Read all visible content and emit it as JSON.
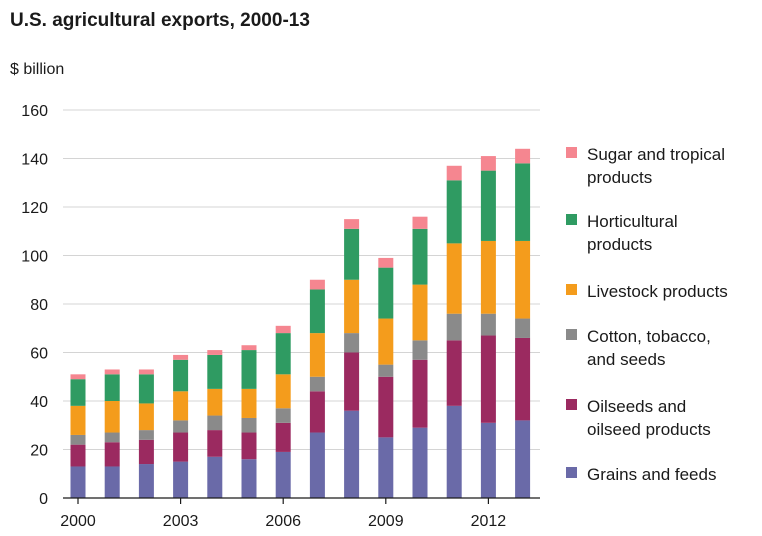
{
  "title": "U.S. agricultural exports, 2000-13",
  "unit_label": "$ billion",
  "colors": {
    "grains": "#6a6aa8",
    "oilseeds": "#9b2a60",
    "cotton": "#8a8a8a",
    "livestock": "#f49c1c",
    "horticultural": "#2f9b62",
    "sugar": "#f58690"
  },
  "legend": [
    {
      "key": "sugar",
      "lines": [
        "Sugar and tropical",
        "products"
      ]
    },
    {
      "key": "horticultural",
      "lines": [
        "Horticultural",
        "products"
      ]
    },
    {
      "key": "livestock",
      "lines": [
        "Livestock products"
      ]
    },
    {
      "key": "cotton",
      "lines": [
        "Cotton, tobacco,",
        "and seeds"
      ]
    },
    {
      "key": "oilseeds",
      "lines": [
        "Oilseeds and",
        "oilseed products"
      ]
    },
    {
      "key": "grains",
      "lines": [
        "Grains and feeds"
      ]
    }
  ],
  "chart_data": {
    "type": "bar",
    "stacked": true,
    "title": "U.S. agricultural exports, 2000-13",
    "ylabel": "$ billion",
    "ylim": [
      0,
      160
    ],
    "yticks": [
      0,
      20,
      40,
      60,
      80,
      100,
      120,
      140,
      160
    ],
    "x_tick_labels": [
      "2000",
      "2003",
      "2006",
      "2009",
      "2012"
    ],
    "categories": [
      "2000",
      "2001",
      "2002",
      "2003",
      "2004",
      "2005",
      "2006",
      "2007",
      "2008",
      "2009",
      "2010",
      "2011",
      "2012",
      "2013"
    ],
    "series": [
      {
        "name": "Grains and feeds",
        "key": "grains",
        "values": [
          13,
          13,
          14,
          15,
          17,
          16,
          19,
          27,
          36,
          25,
          29,
          38,
          31,
          32
        ]
      },
      {
        "name": "Oilseeds and oilseed products",
        "key": "oilseeds",
        "values": [
          9,
          10,
          10,
          12,
          11,
          11,
          12,
          17,
          24,
          25,
          28,
          27,
          36,
          34
        ]
      },
      {
        "name": "Cotton, tobacco, and seeds",
        "key": "cotton",
        "values": [
          4,
          4,
          4,
          5,
          6,
          6,
          6,
          6,
          8,
          5,
          8,
          11,
          9,
          8
        ]
      },
      {
        "name": "Livestock products",
        "key": "livestock",
        "values": [
          12,
          13,
          11,
          12,
          11,
          12,
          14,
          18,
          22,
          19,
          23,
          29,
          30,
          32
        ]
      },
      {
        "name": "Horticultural products",
        "key": "horticultural",
        "values": [
          11,
          11,
          12,
          13,
          14,
          16,
          17,
          18,
          21,
          21,
          23,
          26,
          29,
          32
        ]
      },
      {
        "name": "Sugar and tropical products",
        "key": "sugar",
        "values": [
          2,
          2,
          2,
          2,
          2,
          2,
          3,
          4,
          4,
          4,
          5,
          6,
          6,
          6
        ]
      }
    ],
    "grid": true,
    "legend_position": "right"
  }
}
